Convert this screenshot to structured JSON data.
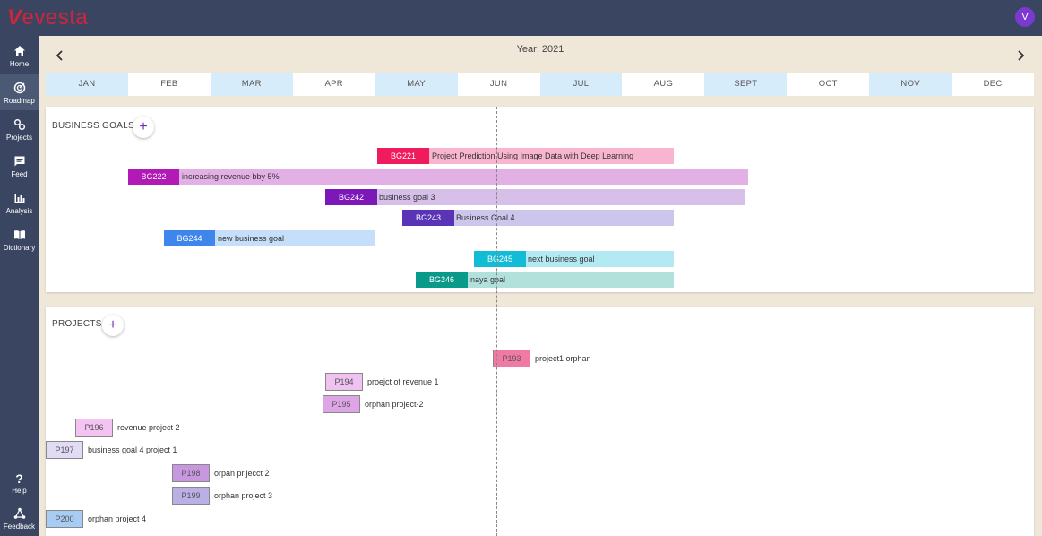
{
  "app": {
    "logo_mark": "V",
    "logo_text": "evesta",
    "user_initial": "V"
  },
  "sidebar": {
    "items": [
      {
        "label": "Home",
        "icon": "home-icon"
      },
      {
        "label": "Roadmap",
        "icon": "roadmap-icon"
      },
      {
        "label": "Projects",
        "icon": "projects-icon"
      },
      {
        "label": "Feed",
        "icon": "feed-icon"
      },
      {
        "label": "Analysis",
        "icon": "analysis-icon"
      },
      {
        "label": "Dictionary",
        "icon": "dictionary-icon"
      }
    ],
    "bottom": [
      {
        "label": "Help",
        "icon": "help-icon"
      },
      {
        "label": "Feedback",
        "icon": "feedback-icon"
      }
    ]
  },
  "roadmap": {
    "year_label": "Year: 2021",
    "months": [
      "JAN",
      "FEB",
      "MAR",
      "APR",
      "MAY",
      "JUN",
      "JUL",
      "AUG",
      "SEPT",
      "OCT",
      "NOV",
      "DEC"
    ]
  },
  "goals": {
    "title": "BUSINESS GOALS",
    "add_label": "+",
    "items": [
      {
        "code": "BG221",
        "name": "Project Prediction Using Image Data with Deep Learning",
        "code_color": "#ef1b5c",
        "bar_color": "#f9b5cf"
      },
      {
        "code": "BG222",
        "name": "increasing revenue bby 5%",
        "code_color": "#b11ab4",
        "bar_color": "#e3b0e6"
      },
      {
        "code": "BG242",
        "name": "business goal 3",
        "code_color": "#7d18b8",
        "bar_color": "#d6c0ea"
      },
      {
        "code": "BG243",
        "name": "Business Goal 4",
        "code_color": "#5a34b6",
        "bar_color": "#cdc6ec"
      },
      {
        "code": "BG244",
        "name": "new business goal",
        "code_color": "#3f86ec",
        "bar_color": "#c5def9"
      },
      {
        "code": "BG245",
        "name": "next business goal",
        "code_color": "#13bcd6",
        "bar_color": "#b3e9f3"
      },
      {
        "code": "BG246",
        "name": "naya goal",
        "code_color": "#0a9a8a",
        "bar_color": "#b2e1dc"
      }
    ]
  },
  "projects": {
    "title": "PROJECTS",
    "add_label": "+",
    "items": [
      {
        "code": "P193",
        "name": "project1 orphan",
        "code_color": "#f07aa3",
        "bar_color": "#fdd8e6"
      },
      {
        "code": "P194",
        "name": "proejct of revenue 1",
        "code_color": "#efc2f1",
        "bar_color": "#f7e0f5"
      },
      {
        "code": "P195",
        "name": "orphan project-2",
        "code_color": "#dea5e6",
        "bar_color": "#f0d3f0"
      },
      {
        "code": "P196",
        "name": "revenue project 2",
        "code_color": "#f3c4f1",
        "bar_color": "#f8e4f6"
      },
      {
        "code": "P197",
        "name": "business goal 4 project 1",
        "code_color": "#e1dbf5",
        "bar_color": "#ebe7f7"
      },
      {
        "code": "P198",
        "name": "orpan prijecct 2",
        "code_color": "#c797e0",
        "bar_color": "#ece0f3"
      },
      {
        "code": "P199",
        "name": "orphan project 3",
        "code_color": "#bbb0e6",
        "bar_color": "#e6e2f4"
      },
      {
        "code": "P200",
        "name": "orphan project 4",
        "code_color": "#a8cdf4",
        "bar_color": "#dde9fa"
      }
    ]
  }
}
